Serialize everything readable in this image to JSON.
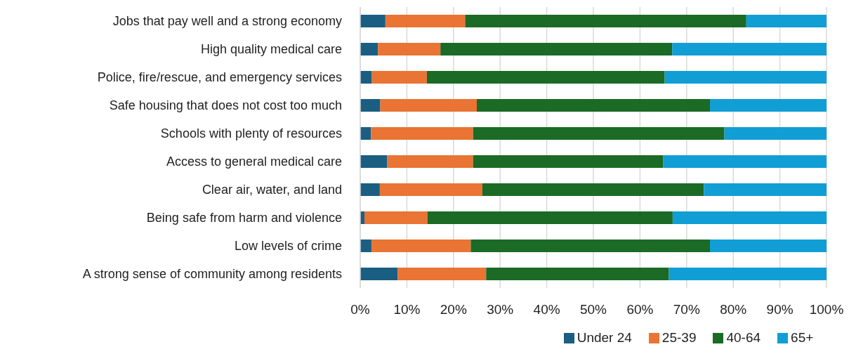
{
  "chart_data": {
    "type": "bar",
    "orientation": "horizontal",
    "stacked": true,
    "categories": [
      "Jobs that pay well and a strong economy",
      "High quality medical care",
      "Police, fire/rescue, and emergency services",
      "Safe housing that does not cost too much",
      "Schools with plenty of resources",
      "Access to general medical care",
      "Clear air, water, and land",
      "Being safe from harm and violence",
      "Low levels of crime",
      "A strong sense of community among residents"
    ],
    "series": [
      {
        "name": "Under 24",
        "color": "#1a5e82",
        "values": [
          5.4,
          3.8,
          2.5,
          4.3,
          2.3,
          5.8,
          4.2,
          0.9,
          2.4,
          8.0
        ]
      },
      {
        "name": "25-39",
        "color": "#e97434",
        "values": [
          17.1,
          13.4,
          11.8,
          20.7,
          21.9,
          18.4,
          22.0,
          13.5,
          21.3,
          19.0
        ]
      },
      {
        "name": "40-64",
        "color": "#1b6a25",
        "values": [
          60.3,
          49.7,
          51.0,
          50.0,
          53.9,
          40.8,
          47.5,
          52.6,
          51.3,
          39.2
        ]
      },
      {
        "name": "65+",
        "color": "#109ed5",
        "values": [
          17.2,
          33.1,
          34.7,
          25.0,
          21.9,
          35.0,
          26.3,
          33.0,
          25.0,
          33.8
        ]
      }
    ],
    "xlim": [
      0,
      100
    ],
    "xticks": [
      {
        "value": 0,
        "label": "0%"
      },
      {
        "value": 10,
        "label": "10%"
      },
      {
        "value": 20,
        "label": "20%"
      },
      {
        "value": 30,
        "label": "30%"
      },
      {
        "value": 40,
        "label": "40%"
      },
      {
        "value": 50,
        "label": "50%"
      },
      {
        "value": 60,
        "label": "60%"
      },
      {
        "value": 70,
        "label": "70%"
      },
      {
        "value": 80,
        "label": "80%"
      },
      {
        "value": 90,
        "label": "90%"
      },
      {
        "value": 100,
        "label": "100%"
      }
    ],
    "grid": "x",
    "legend": "bottom"
  }
}
